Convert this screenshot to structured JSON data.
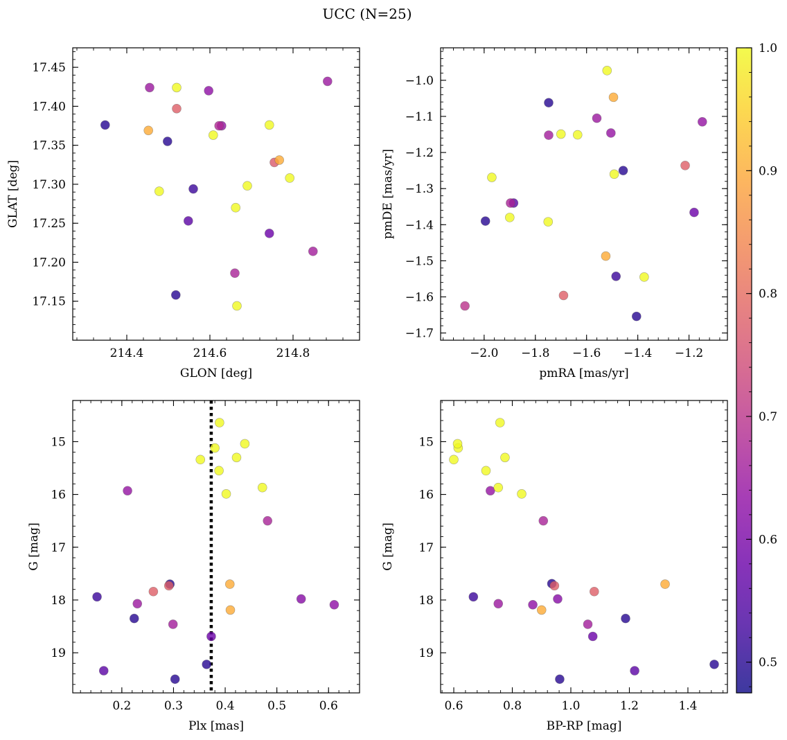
{
  "figure": {
    "title": "UCC (N=25)",
    "colormap": "plasma",
    "marker_alpha": 0.8
  },
  "colorbar": {
    "vmin": 0.475,
    "vmax": 1.0,
    "ticks": [
      0.5,
      0.6,
      0.7,
      0.8,
      0.9,
      1.0
    ],
    "tick_labels": [
      "0.5",
      "0.6",
      "0.7",
      "0.8",
      "0.9",
      "1.0"
    ]
  },
  "chart_data": [
    {
      "type": "scatter",
      "panel": "top-left",
      "xlabel": "GLON [deg]",
      "ylabel": "GLAT [deg]",
      "xlim": [
        214.27,
        214.96
      ],
      "ylim": [
        17.1,
        17.475
      ],
      "y_inverted": false,
      "xticks": [
        214.4,
        214.6,
        214.8
      ],
      "xtick_labels": [
        "214.4",
        "214.6",
        "214.8"
      ],
      "yticks": [
        17.15,
        17.2,
        17.25,
        17.3,
        17.35,
        17.4,
        17.45
      ],
      "ytick_labels": [
        "17.15",
        "17.20",
        "17.25",
        "17.30",
        "17.35",
        "17.40",
        "17.45"
      ],
      "x_minor_step": 0.04,
      "y_minor_step": 0.01,
      "points": [
        {
          "x": 214.348,
          "y": 17.376,
          "c": 0.5
        },
        {
          "x": 214.498,
          "y": 17.355,
          "c": 0.5
        },
        {
          "x": 214.518,
          "y": 17.158,
          "c": 0.5
        },
        {
          "x": 214.56,
          "y": 17.294,
          "c": 0.52
        },
        {
          "x": 214.548,
          "y": 17.253,
          "c": 0.56
        },
        {
          "x": 214.743,
          "y": 17.237,
          "c": 0.58
        },
        {
          "x": 214.455,
          "y": 17.424,
          "c": 0.65
        },
        {
          "x": 214.597,
          "y": 17.42,
          "c": 0.63
        },
        {
          "x": 214.622,
          "y": 17.375,
          "c": 0.68
        },
        {
          "x": 214.628,
          "y": 17.375,
          "c": 0.64
        },
        {
          "x": 214.883,
          "y": 17.432,
          "c": 0.65
        },
        {
          "x": 214.848,
          "y": 17.214,
          "c": 0.66
        },
        {
          "x": 214.66,
          "y": 17.186,
          "c": 0.67
        },
        {
          "x": 214.52,
          "y": 17.397,
          "c": 0.78
        },
        {
          "x": 214.755,
          "y": 17.328,
          "c": 0.77
        },
        {
          "x": 214.452,
          "y": 17.369,
          "c": 0.9
        },
        {
          "x": 214.767,
          "y": 17.331,
          "c": 0.9
        },
        {
          "x": 214.52,
          "y": 17.424,
          "c": 1.0
        },
        {
          "x": 214.608,
          "y": 17.363,
          "c": 1.0
        },
        {
          "x": 214.743,
          "y": 17.376,
          "c": 1.0
        },
        {
          "x": 214.478,
          "y": 17.291,
          "c": 1.0
        },
        {
          "x": 214.69,
          "y": 17.298,
          "c": 1.0
        },
        {
          "x": 214.792,
          "y": 17.308,
          "c": 1.0
        },
        {
          "x": 214.662,
          "y": 17.27,
          "c": 1.0
        },
        {
          "x": 214.665,
          "y": 17.144,
          "c": 1.0
        }
      ]
    },
    {
      "type": "scatter",
      "panel": "top-right",
      "xlabel": "pmRA [mas/yr]",
      "ylabel": "pmDE [mas/yr]",
      "xlim": [
        -2.17,
        -1.05
      ],
      "ylim": [
        -1.72,
        -0.91
      ],
      "y_inverted": false,
      "xticks": [
        -2.0,
        -1.8,
        -1.6,
        -1.4,
        -1.2
      ],
      "xtick_labels": [
        "−2.0",
        "−1.8",
        "−1.6",
        "−1.4",
        "−1.2"
      ],
      "yticks": [
        -1.7,
        -1.6,
        -1.5,
        -1.4,
        -1.3,
        -1.2,
        -1.1,
        -1.0
      ],
      "ytick_labels": [
        "−1.7",
        "−1.6",
        "−1.5",
        "−1.4",
        "−1.3",
        "−1.2",
        "−1.1",
        "−1.0"
      ],
      "x_minor_step": 0.04,
      "y_minor_step": 0.02,
      "points": [
        {
          "x": -1.748,
          "y": -1.062,
          "c": 0.5
        },
        {
          "x": -1.457,
          "y": -1.25,
          "c": 0.5
        },
        {
          "x": -1.995,
          "y": -1.39,
          "c": 0.5
        },
        {
          "x": -1.885,
          "y": -1.34,
          "c": 0.56
        },
        {
          "x": -1.897,
          "y": -1.34,
          "c": 0.67
        },
        {
          "x": -1.18,
          "y": -1.366,
          "c": 0.58
        },
        {
          "x": -1.485,
          "y": -1.543,
          "c": 0.52
        },
        {
          "x": -1.405,
          "y": -1.654,
          "c": 0.5
        },
        {
          "x": -1.748,
          "y": -1.152,
          "c": 0.66
        },
        {
          "x": -1.56,
          "y": -1.105,
          "c": 0.65
        },
        {
          "x": -1.505,
          "y": -1.146,
          "c": 0.64
        },
        {
          "x": -1.148,
          "y": -1.115,
          "c": 0.64
        },
        {
          "x": -2.075,
          "y": -1.625,
          "c": 0.7
        },
        {
          "x": -1.215,
          "y": -1.236,
          "c": 0.78
        },
        {
          "x": -1.69,
          "y": -1.596,
          "c": 0.78
        },
        {
          "x": -1.495,
          "y": -1.047,
          "c": 0.9
        },
        {
          "x": -1.525,
          "y": -1.487,
          "c": 0.9
        },
        {
          "x": -1.52,
          "y": -0.973,
          "c": 1.0
        },
        {
          "x": -1.7,
          "y": -1.149,
          "c": 1.0
        },
        {
          "x": -1.635,
          "y": -1.151,
          "c": 1.0
        },
        {
          "x": -1.492,
          "y": -1.26,
          "c": 1.0
        },
        {
          "x": -1.97,
          "y": -1.269,
          "c": 1.0
        },
        {
          "x": -1.9,
          "y": -1.38,
          "c": 1.0
        },
        {
          "x": -1.75,
          "y": -1.392,
          "c": 1.0
        },
        {
          "x": -1.375,
          "y": -1.545,
          "c": 1.0
        }
      ]
    },
    {
      "type": "scatter",
      "panel": "bottom-left",
      "xlabel": "Plx [mas]",
      "ylabel": "G [mag]",
      "xlim": [
        0.105,
        0.66
      ],
      "ylim": [
        19.76,
        14.22
      ],
      "y_inverted": true,
      "xticks": [
        0.2,
        0.3,
        0.4,
        0.5,
        0.6
      ],
      "xtick_labels": [
        "0.2",
        "0.3",
        "0.4",
        "0.5",
        "0.6"
      ],
      "yticks": [
        15,
        16,
        17,
        18,
        19
      ],
      "ytick_labels": [
        "15",
        "16",
        "17",
        "18",
        "19"
      ],
      "x_minor_step": 0.02,
      "y_minor_step": 0.2,
      "vline": {
        "x": 0.373,
        "style": "dotted"
      },
      "points": [
        {
          "x": 0.152,
          "y": 17.94,
          "c": 0.52
        },
        {
          "x": 0.224,
          "y": 18.35,
          "c": 0.5
        },
        {
          "x": 0.293,
          "y": 17.7,
          "c": 0.5
        },
        {
          "x": 0.303,
          "y": 19.5,
          "c": 0.5
        },
        {
          "x": 0.364,
          "y": 19.22,
          "c": 0.5
        },
        {
          "x": 0.165,
          "y": 19.34,
          "c": 0.56
        },
        {
          "x": 0.373,
          "y": 18.69,
          "c": 0.58
        },
        {
          "x": 0.547,
          "y": 17.98,
          "c": 0.62
        },
        {
          "x": 0.611,
          "y": 18.09,
          "c": 0.63
        },
        {
          "x": 0.211,
          "y": 15.93,
          "c": 0.64
        },
        {
          "x": 0.23,
          "y": 18.07,
          "c": 0.65
        },
        {
          "x": 0.299,
          "y": 18.46,
          "c": 0.66
        },
        {
          "x": 0.482,
          "y": 16.5,
          "c": 0.67
        },
        {
          "x": 0.261,
          "y": 17.84,
          "c": 0.78
        },
        {
          "x": 0.291,
          "y": 17.73,
          "c": 0.78
        },
        {
          "x": 0.409,
          "y": 17.7,
          "c": 0.9
        },
        {
          "x": 0.41,
          "y": 18.19,
          "c": 0.9
        },
        {
          "x": 0.389,
          "y": 14.64,
          "c": 1.0
        },
        {
          "x": 0.352,
          "y": 15.34,
          "c": 1.0
        },
        {
          "x": 0.38,
          "y": 15.12,
          "c": 1.0
        },
        {
          "x": 0.438,
          "y": 15.04,
          "c": 1.0
        },
        {
          "x": 0.422,
          "y": 15.3,
          "c": 1.0
        },
        {
          "x": 0.388,
          "y": 15.55,
          "c": 1.0
        },
        {
          "x": 0.402,
          "y": 15.99,
          "c": 1.0
        },
        {
          "x": 0.472,
          "y": 15.87,
          "c": 1.0
        }
      ]
    },
    {
      "type": "scatter",
      "panel": "bottom-right",
      "xlabel": "BP-RP [mag]",
      "ylabel": "G [mag]",
      "xlim": [
        0.555,
        1.535
      ],
      "ylim": [
        19.76,
        14.22
      ],
      "y_inverted": true,
      "xticks": [
        0.6,
        0.8,
        1.0,
        1.2,
        1.4
      ],
      "xtick_labels": [
        "0.6",
        "0.8",
        "1.0",
        "1.2",
        "1.4"
      ],
      "yticks": [
        15,
        16,
        17,
        18,
        19
      ],
      "ytick_labels": [
        "15",
        "16",
        "17",
        "18",
        "19"
      ],
      "x_minor_step": 0.04,
      "y_minor_step": 0.2,
      "points": [
        {
          "x": 0.667,
          "y": 17.94,
          "c": 0.52
        },
        {
          "x": 0.935,
          "y": 17.69,
          "c": 0.5
        },
        {
          "x": 1.187,
          "y": 18.35,
          "c": 0.5
        },
        {
          "x": 0.962,
          "y": 19.5,
          "c": 0.5
        },
        {
          "x": 1.49,
          "y": 19.22,
          "c": 0.5
        },
        {
          "x": 1.218,
          "y": 19.34,
          "c": 0.56
        },
        {
          "x": 1.075,
          "y": 18.69,
          "c": 0.58
        },
        {
          "x": 0.955,
          "y": 17.98,
          "c": 0.62
        },
        {
          "x": 0.87,
          "y": 18.09,
          "c": 0.63
        },
        {
          "x": 0.725,
          "y": 15.93,
          "c": 0.64
        },
        {
          "x": 0.752,
          "y": 18.07,
          "c": 0.65
        },
        {
          "x": 1.058,
          "y": 18.46,
          "c": 0.66
        },
        {
          "x": 0.906,
          "y": 16.5,
          "c": 0.67
        },
        {
          "x": 1.08,
          "y": 17.84,
          "c": 0.78
        },
        {
          "x": 0.944,
          "y": 17.73,
          "c": 0.78
        },
        {
          "x": 1.322,
          "y": 17.7,
          "c": 0.9
        },
        {
          "x": 0.9,
          "y": 18.19,
          "c": 0.9
        },
        {
          "x": 0.758,
          "y": 14.64,
          "c": 1.0
        },
        {
          "x": 0.6,
          "y": 15.34,
          "c": 1.0
        },
        {
          "x": 0.615,
          "y": 15.12,
          "c": 1.0
        },
        {
          "x": 0.613,
          "y": 15.04,
          "c": 1.0
        },
        {
          "x": 0.775,
          "y": 15.3,
          "c": 1.0
        },
        {
          "x": 0.71,
          "y": 15.55,
          "c": 1.0
        },
        {
          "x": 0.832,
          "y": 15.99,
          "c": 1.0
        },
        {
          "x": 0.752,
          "y": 15.87,
          "c": 1.0
        }
      ]
    }
  ]
}
